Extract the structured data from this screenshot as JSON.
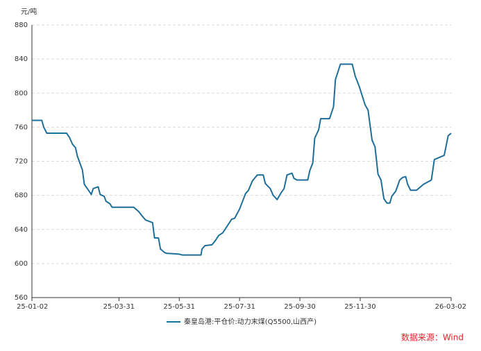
{
  "chart_data": {
    "type": "line",
    "y_unit": "元/吨",
    "source": "数据来源：Wind",
    "x": [
      "25-01-02",
      "25-01-12",
      "25-01-14",
      "25-01-17",
      "25-02-06",
      "25-02-09",
      "25-02-12",
      "25-02-15",
      "25-02-17",
      "25-02-22",
      "25-02-24",
      "25-03-02",
      "25-03-03",
      "25-03-05",
      "25-03-10",
      "25-03-12",
      "25-03-16",
      "25-03-18",
      "25-03-22",
      "25-03-24",
      "25-04-15",
      "25-04-20",
      "25-04-24",
      "25-04-27",
      "25-05-04",
      "25-05-06",
      "25-05-10",
      "25-05-12",
      "25-05-16",
      "25-05-18",
      "25-05-31",
      "25-06-03",
      "25-06-22",
      "25-06-23",
      "25-06-26",
      "25-07-03",
      "25-07-06",
      "25-07-10",
      "25-07-14",
      "25-07-18",
      "25-07-23",
      "25-07-26",
      "25-07-31",
      "25-08-06",
      "25-08-09",
      "25-08-13",
      "25-08-18",
      "25-08-24",
      "25-08-26",
      "25-08-31",
      "25-09-03",
      "25-09-07",
      "25-09-11",
      "25-09-14",
      "25-09-17",
      "25-09-22",
      "25-09-24",
      "25-09-27",
      "25-10-08",
      "25-10-10",
      "25-10-13",
      "25-10-15",
      "25-10-19",
      "25-10-21",
      "25-10-30",
      "25-11-03",
      "25-11-05",
      "25-11-10",
      "25-11-22",
      "25-11-25",
      "25-11-29",
      "25-12-05",
      "25-12-08",
      "25-12-12",
      "25-12-15",
      "25-12-18",
      "25-12-21",
      "25-12-24",
      "25-12-27",
      "25-12-30",
      "26-01-01",
      "26-01-05",
      "26-01-09",
      "26-01-12",
      "26-01-15",
      "26-01-17",
      "26-01-20",
      "26-01-26",
      "26-02-02",
      "26-02-10",
      "26-02-13",
      "26-02-23",
      "26-02-27",
      "26-03-02"
    ],
    "series": [
      {
        "name": "秦皇岛港:平仓价:动力末煤(Q5500,山西产)",
        "color": "#1d6e98",
        "values": [
          768,
          768,
          760,
          753,
          753,
          748,
          740,
          736,
          726,
          710,
          693,
          683,
          681,
          688,
          690,
          681,
          679,
          673,
          670,
          666,
          666,
          661,
          655,
          651,
          648,
          630,
          630,
          617,
          613,
          612,
          611,
          610,
          610,
          617,
          621,
          622,
          626,
          633,
          636,
          643,
          652,
          653,
          664,
          682,
          686,
          697,
          704,
          704,
          694,
          688,
          680,
          675,
          683,
          688,
          704,
          706,
          700,
          698,
          698,
          709,
          718,
          747,
          757,
          770,
          770,
          784,
          816,
          834,
          834,
          820,
          808,
          786,
          780,
          745,
          737,
          705,
          698,
          676,
          671,
          671,
          679,
          685,
          698,
          701,
          702,
          693,
          686,
          686,
          693,
          698,
          722,
          727,
          750,
          753
        ]
      }
    ],
    "xlim": [
      "25-01-02",
      "26-03-02"
    ],
    "xticks": [
      "25-01-02",
      "25-03-31",
      "25-05-31",
      "25-07-31",
      "25-09-30",
      "25-11-30",
      "26-03-02"
    ],
    "ylim": [
      560,
      880
    ],
    "yticks": [
      560,
      600,
      640,
      680,
      720,
      760,
      800,
      840,
      880
    ],
    "grid": true
  }
}
